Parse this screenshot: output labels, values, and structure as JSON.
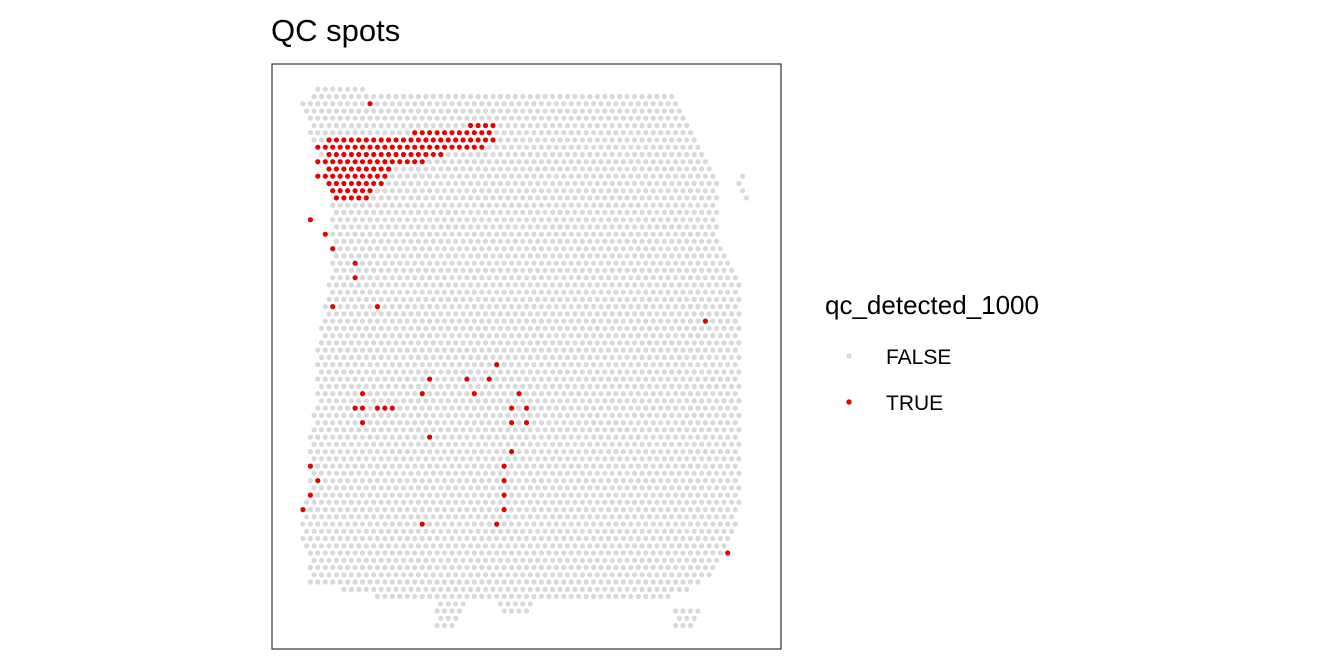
{
  "chart_data": {
    "type": "scatter",
    "title": "QC spots",
    "xlabel": "",
    "ylabel": "",
    "grid": false,
    "legend": {
      "title": "qc_detected_1000",
      "position": "right",
      "entries": [
        {
          "label": "FALSE",
          "color": "#d9d9d9"
        },
        {
          "label": "TRUE",
          "color": "#e60000"
        }
      ]
    },
    "x_range": [
      0,
      64
    ],
    "y_range": [
      0,
      77
    ],
    "tissue_outline": [
      [
        [
          11,
          76
        ],
        [
          52,
          76
        ],
        [
          55,
          70
        ],
        [
          58,
          62
        ],
        [
          58,
          55
        ],
        [
          61,
          48
        ],
        [
          61,
          23
        ],
        [
          60,
          14
        ],
        [
          58,
          10
        ],
        [
          56,
          8
        ],
        [
          52,
          6
        ],
        [
          46,
          5
        ],
        [
          12,
          6
        ],
        [
          3,
          8
        ],
        [
          3,
          10
        ],
        [
          2,
          14
        ],
        [
          2,
          18
        ],
        [
          3,
          22
        ],
        [
          3,
          29
        ],
        [
          4,
          33
        ],
        [
          4,
          40
        ],
        [
          5,
          46
        ],
        [
          6,
          52
        ],
        [
          6,
          60
        ],
        [
          5,
          66
        ],
        [
          3,
          70
        ],
        [
          2,
          74
        ],
        [
          5,
          77
        ]
      ],
      [
        [
          20,
          6
        ],
        [
          24,
          6
        ],
        [
          23,
          2
        ],
        [
          20,
          2
        ]
      ],
      [
        [
          28,
          6
        ],
        [
          34,
          6
        ],
        [
          33,
          4
        ],
        [
          29,
          4
        ]
      ],
      [
        [
          52,
          4
        ],
        [
          56,
          5
        ],
        [
          55,
          2
        ],
        [
          52,
          2
        ]
      ],
      [
        [
          60,
          65
        ],
        [
          61,
          61
        ],
        [
          62,
          61
        ],
        [
          61,
          65
        ]
      ]
    ],
    "true_spots": [
      [
        10,
        73
      ],
      [
        11,
        74
      ],
      [
        12,
        73
      ],
      [
        5,
        67
      ],
      [
        5,
        65
      ],
      [
        4,
        64
      ],
      [
        3,
        63
      ],
      [
        3,
        61
      ],
      [
        3,
        58
      ],
      [
        6,
        59
      ],
      [
        4,
        59
      ],
      [
        5,
        56
      ],
      [
        29,
        73
      ],
      [
        55,
        59
      ],
      [
        6,
        54
      ],
      [
        15,
        53
      ],
      [
        9,
        52
      ],
      [
        9,
        50
      ],
      [
        56,
        44
      ],
      [
        6,
        46
      ],
      [
        12,
        46
      ],
      [
        17,
        47
      ],
      [
        30,
        41
      ],
      [
        45,
        37
      ],
      [
        22,
        37
      ],
      [
        24,
        36
      ],
      [
        25,
        34
      ],
      [
        26,
        37
      ],
      [
        27,
        36
      ],
      [
        28,
        38
      ],
      [
        29,
        37
      ],
      [
        19,
        36
      ],
      [
        18,
        34
      ],
      [
        10,
        34
      ],
      [
        9,
        32
      ],
      [
        10,
        32
      ],
      [
        11,
        31
      ],
      [
        12,
        32
      ],
      [
        13,
        32
      ],
      [
        14,
        32
      ],
      [
        15,
        33
      ],
      [
        10,
        30
      ],
      [
        41,
        29
      ],
      [
        19,
        28
      ],
      [
        12,
        27
      ],
      [
        30,
        26
      ],
      [
        30,
        25
      ],
      [
        29,
        24
      ],
      [
        30,
        23
      ],
      [
        29,
        22
      ],
      [
        4,
        25
      ],
      [
        3,
        24
      ],
      [
        4,
        23
      ],
      [
        4,
        22
      ],
      [
        3,
        21
      ],
      [
        3,
        20
      ],
      [
        2,
        19
      ],
      [
        2,
        18
      ],
      [
        29,
        20
      ],
      [
        29,
        18
      ],
      [
        29,
        17
      ],
      [
        28,
        16
      ],
      [
        29,
        15
      ],
      [
        58,
        23
      ],
      [
        51,
        19
      ],
      [
        18,
        16
      ],
      [
        59,
        12
      ],
      [
        31,
        34
      ],
      [
        29,
        33
      ],
      [
        30,
        32
      ],
      [
        31,
        31
      ],
      [
        30,
        30
      ],
      [
        31,
        29
      ],
      [
        32,
        30
      ],
      [
        33,
        31
      ],
      [
        32,
        32
      ]
    ],
    "true_cluster": {
      "description_rows": [
        {
          "y": 71,
          "x_from": 24,
          "x_to": 27
        },
        {
          "y": 70,
          "x_from": 17,
          "x_to": 27
        },
        {
          "y": 69,
          "x_from": 5,
          "x_to": 27
        },
        {
          "y": 68,
          "x_from": 4,
          "x_to": 26
        },
        {
          "y": 67,
          "x_from": 5,
          "x_to": 20
        },
        {
          "y": 66,
          "x_from": 4,
          "x_to": 18
        },
        {
          "y": 65,
          "x_from": 5,
          "x_to": 13
        },
        {
          "y": 64,
          "x_from": 4,
          "x_to": 13
        },
        {
          "y": 63,
          "x_from": 5,
          "x_to": 12
        },
        {
          "y": 62,
          "x_from": 6,
          "x_to": 11
        },
        {
          "y": 61,
          "x_from": 6,
          "x_to": 10
        }
      ]
    }
  }
}
